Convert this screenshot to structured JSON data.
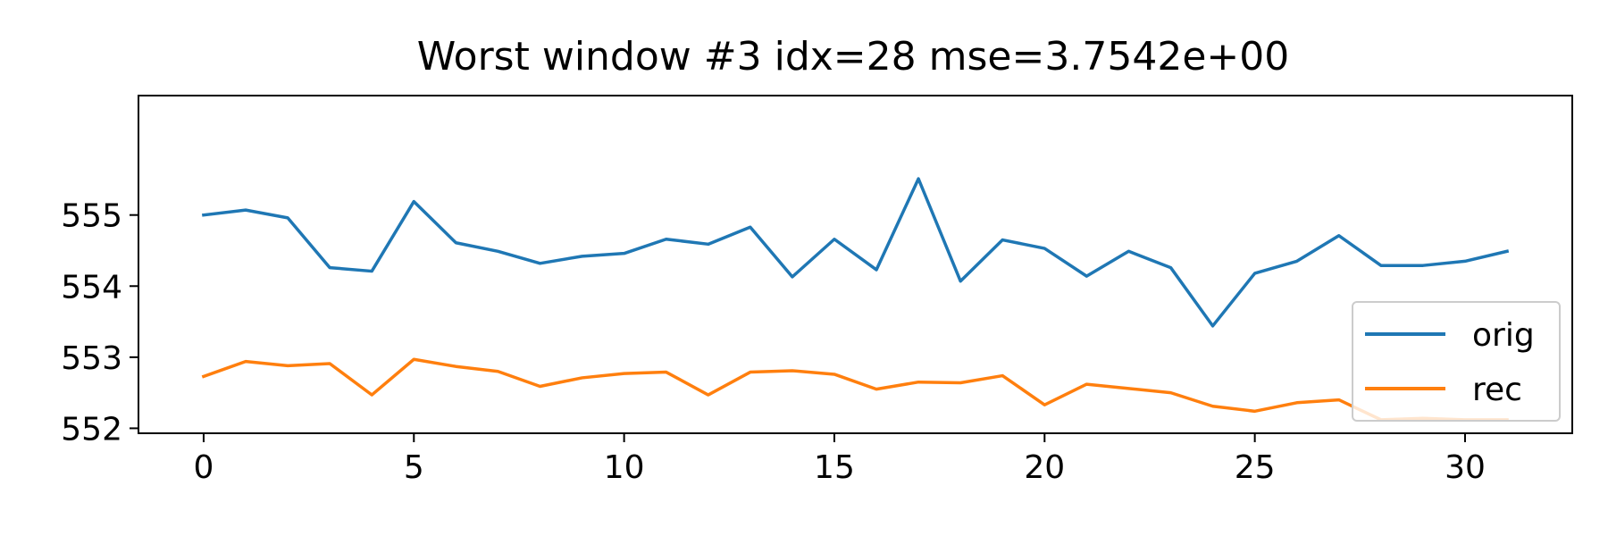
{
  "chart_data": {
    "type": "line",
    "title": "Worst window #3 idx=28 mse=3.7542e+00",
    "xlabel": "",
    "ylabel": "",
    "xlim": [
      -1.55,
      32.55
    ],
    "ylim": [
      551.93,
      556.68
    ],
    "xticks": [
      0,
      5,
      10,
      15,
      20,
      25,
      30
    ],
    "xtick_labels": [
      "0",
      "5",
      "10",
      "15",
      "20",
      "25",
      "30"
    ],
    "yticks": [
      552,
      553,
      554,
      555
    ],
    "ytick_labels": [
      "552",
      "553",
      "554",
      "555"
    ],
    "grid": false,
    "legend": {
      "position": "lower-right"
    },
    "x": [
      0,
      1,
      2,
      3,
      4,
      5,
      6,
      7,
      8,
      9,
      10,
      11,
      12,
      13,
      14,
      15,
      16,
      17,
      18,
      19,
      20,
      21,
      22,
      23,
      24,
      25,
      26,
      27,
      28,
      29,
      30,
      31
    ],
    "series": [
      {
        "name": "orig",
        "color": "#1f77b4",
        "values": [
          555.0,
          555.07,
          554.96,
          554.26,
          554.21,
          555.19,
          554.61,
          554.49,
          554.32,
          554.42,
          554.46,
          554.66,
          554.59,
          554.83,
          554.13,
          554.66,
          554.23,
          555.51,
          554.07,
          554.65,
          554.53,
          554.14,
          554.49,
          554.26,
          553.44,
          554.18,
          554.35,
          554.71,
          554.29,
          554.29,
          554.35,
          554.49
        ]
      },
      {
        "name": "rec",
        "color": "#ff7f0e",
        "values": [
          552.73,
          552.94,
          552.88,
          552.91,
          552.47,
          552.97,
          552.87,
          552.8,
          552.59,
          552.71,
          552.77,
          552.79,
          552.47,
          552.79,
          552.81,
          552.76,
          552.55,
          552.65,
          552.64,
          552.74,
          552.33,
          552.62,
          552.56,
          552.5,
          552.31,
          552.24,
          552.36,
          552.4,
          552.12,
          552.14,
          552.12,
          552.12
        ]
      }
    ]
  }
}
